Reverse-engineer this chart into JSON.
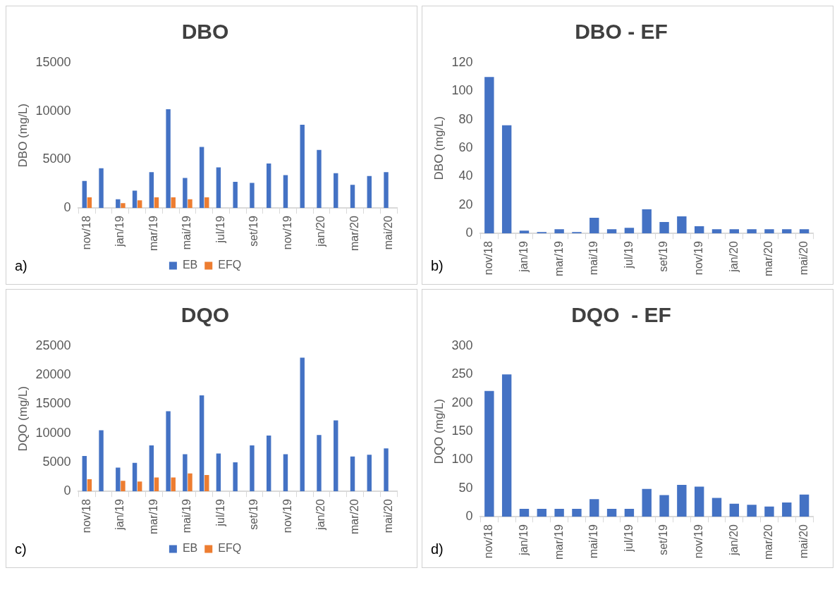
{
  "chart_data": [
    {
      "type": "bar",
      "title": "DBO",
      "ylabel": "DBO (mg/L)",
      "categories": [
        "nov/18",
        null,
        "jan/19",
        null,
        "mar/19",
        null,
        "mai/19",
        null,
        "jul/19",
        null,
        "set/19",
        null,
        "nov/19",
        null,
        "jan/20",
        null,
        "mar/20",
        null,
        "mai/20"
      ],
      "series": [
        {
          "name": "EB",
          "color": "#4472c4",
          "values": [
            2800,
            4100,
            900,
            1800,
            3700,
            10200,
            3100,
            6300,
            4200,
            2700,
            2600,
            4600,
            3400,
            8600,
            6000,
            3600,
            2400,
            3300,
            3700
          ]
        },
        {
          "name": "EFQ",
          "color": "#ed7d31",
          "values": [
            1100,
            null,
            500,
            800,
            1100,
            1100,
            900,
            1100,
            null,
            null,
            null,
            null,
            null,
            null,
            null,
            null,
            null,
            null,
            null
          ]
        }
      ],
      "ylim": [
        0,
        15000
      ],
      "yticks": [
        0,
        5000,
        10000,
        15000
      ],
      "grid": false,
      "legend": "bottom",
      "annotations": [
        "a)"
      ]
    },
    {
      "type": "bar",
      "title": "DBO - EF",
      "ylabel": "DBO (mg/L)",
      "categories": [
        "nov/18",
        null,
        "jan/19",
        null,
        "mar/19",
        null,
        "mai/19",
        null,
        "jul/19",
        null,
        "set/19",
        null,
        "nov/19",
        null,
        "jan/20",
        null,
        "mar/20",
        null,
        "mai/20"
      ],
      "series": [
        {
          "color": "#4472c4",
          "values": [
            110,
            76,
            2,
            1,
            3,
            1,
            11,
            3,
            4,
            17,
            8,
            12,
            5,
            3,
            3,
            3,
            3,
            3,
            3
          ]
        }
      ],
      "ylim": [
        0,
        120
      ],
      "yticks": [
        0,
        20,
        40,
        60,
        80,
        100,
        120
      ],
      "grid": false,
      "annotations": [
        "b)"
      ]
    },
    {
      "type": "bar",
      "title": "DQO",
      "ylabel": "DQO (mg/L)",
      "categories": [
        "nov/18",
        null,
        "jan/19",
        null,
        "mar/19",
        null,
        "mai/19",
        null,
        "jul/19",
        null,
        "set/19",
        null,
        "nov/19",
        null,
        "jan/20",
        null,
        "mar/20",
        null,
        "mai/20"
      ],
      "series": [
        {
          "name": "EB",
          "color": "#4472c4",
          "values": [
            6100,
            10500,
            4100,
            4900,
            7900,
            13800,
            6400,
            16500,
            6500,
            5000,
            7900,
            9600,
            6400,
            23000,
            9700,
            12200,
            6000,
            6300,
            7400
          ]
        },
        {
          "name": "EFQ",
          "color": "#ed7d31",
          "values": [
            2100,
            null,
            1800,
            1700,
            2400,
            2400,
            3100,
            2800,
            null,
            null,
            null,
            null,
            null,
            null,
            null,
            null,
            null,
            null,
            null
          ]
        }
      ],
      "ylim": [
        0,
        25000
      ],
      "yticks": [
        0,
        5000,
        10000,
        15000,
        20000,
        25000
      ],
      "grid": false,
      "legend": "bottom",
      "annotations": [
        "c)"
      ]
    },
    {
      "type": "bar",
      "title": "DQO  - EF",
      "ylabel": "DQO (mg/L)",
      "categories": [
        "nov/18",
        null,
        "jan/19",
        null,
        "mar/19",
        null,
        "mai/19",
        null,
        "jul/19",
        null,
        "set/19",
        null,
        "nov/19",
        null,
        "jan/20",
        null,
        "mar/20",
        null,
        "mai/20"
      ],
      "series": [
        {
          "color": "#4472c4",
          "values": [
            221,
            250,
            14,
            14,
            14,
            14,
            31,
            14,
            14,
            49,
            38,
            56,
            53,
            33,
            23,
            21,
            18,
            25,
            39
          ]
        }
      ],
      "ylim": [
        0,
        300
      ],
      "yticks": [
        0,
        50,
        100,
        150,
        200,
        250,
        300
      ],
      "grid": false,
      "annotations": [
        "d)"
      ]
    }
  ]
}
